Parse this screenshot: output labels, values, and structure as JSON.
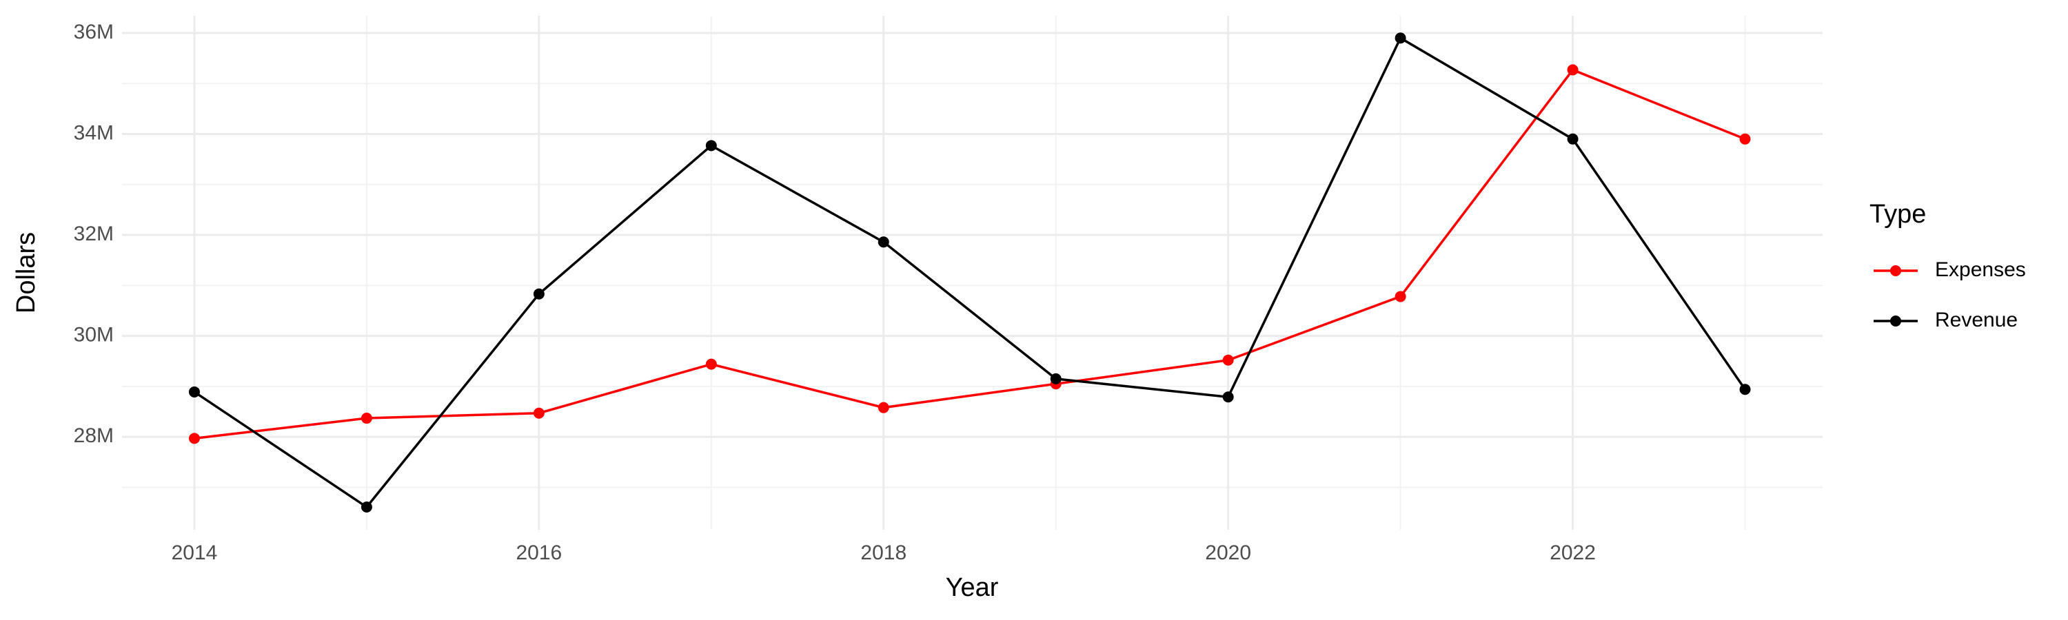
{
  "chart_data": {
    "type": "line",
    "x_label": "Year",
    "y_label": "Dollars",
    "legend_title": "Type",
    "x": [
      2014,
      2015,
      2016,
      2017,
      2018,
      2019,
      2020,
      2021,
      2022,
      2023
    ],
    "series": [
      {
        "name": "Expenses",
        "color": "#ff0000",
        "values": [
          27970000,
          28370000,
          28470000,
          29440000,
          28580000,
          29050000,
          29520000,
          30780000,
          35270000,
          33900000
        ]
      },
      {
        "name": "Revenue",
        "color": "#000000",
        "values": [
          28890000,
          26610000,
          30830000,
          33770000,
          31860000,
          29150000,
          28790000,
          35900000,
          33900000,
          28940000
        ]
      }
    ],
    "xlim": [
      2013.58,
      2023.45
    ],
    "xticks": [
      2014,
      2016,
      2018,
      2020,
      2022
    ],
    "ylim": [
      26160000,
      36340000
    ],
    "yticks": [
      {
        "value": 28000000,
        "label": "28M"
      },
      {
        "value": 30000000,
        "label": "30M"
      },
      {
        "value": 32000000,
        "label": "32M"
      },
      {
        "value": 34000000,
        "label": "34M"
      },
      {
        "value": 36000000,
        "label": "36M"
      }
    ],
    "grid": true,
    "legend": "right"
  }
}
